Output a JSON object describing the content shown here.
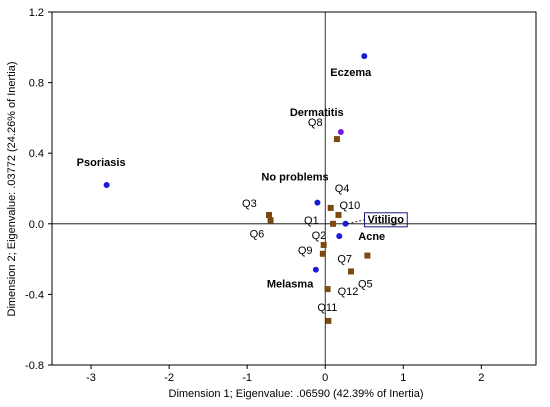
{
  "chart_data": {
    "type": "scatter",
    "xlabel": "Dimension 1; Eigenvalue: .06590 (42.39% of Inertia)",
    "ylabel": "Dimension 2; Eigenvalue: .03772 (24.26% of Inertia)",
    "xlim": [
      -3.5,
      2.7
    ],
    "ylim": [
      -0.8,
      1.2
    ],
    "xticks": [
      -3,
      -2,
      -1,
      0,
      1,
      2
    ],
    "yticks": [
      -0.8,
      -0.4,
      0.0,
      0.4,
      0.8,
      1.2
    ],
    "ytick_labels": [
      "-0.8",
      "-0.4",
      "0.0",
      "0.4",
      "0.8",
      "1.2"
    ],
    "grid": false,
    "colors": {
      "row_points": "#1a1adb",
      "column_points": "#7a4a12",
      "highlighted_point": "#7a1adb",
      "highlight_box": "#1a1a8a"
    },
    "series": [
      {
        "marker": "circle",
        "points": [
          {
            "label": "Eczema",
            "x": 0.5,
            "y": 0.95
          },
          {
            "label": "Dermatitis",
            "x": 0.2,
            "y": 0.52
          },
          {
            "label": "Psoriasis",
            "x": -2.8,
            "y": 0.22
          },
          {
            "label": "No problems",
            "x": -0.1,
            "y": 0.12
          },
          {
            "label": "Vitiligo",
            "x": 0.26,
            "y": 0.0
          },
          {
            "label": "Acne",
            "x": 0.18,
            "y": -0.07
          },
          {
            "label": "Melasma",
            "x": -0.12,
            "y": -0.26
          }
        ]
      },
      {
        "marker": "square",
        "points": [
          {
            "label": "Q8",
            "x": 0.15,
            "y": 0.48
          },
          {
            "label": "Q4",
            "x": 0.07,
            "y": 0.09
          },
          {
            "label": "Q10",
            "x": 0.17,
            "y": 0.05
          },
          {
            "label": "Q3",
            "x": -0.72,
            "y": 0.05
          },
          {
            "label": "Q1",
            "x": 0.1,
            "y": 0.0
          },
          {
            "label": "Q6",
            "x": -0.7,
            "y": 0.02
          },
          {
            "label": "Q2",
            "x": -0.02,
            "y": -0.12
          },
          {
            "label": "Q9",
            "x": -0.03,
            "y": -0.17
          },
          {
            "label": "Q7",
            "x": 0.54,
            "y": -0.18
          },
          {
            "label": "Q5",
            "x": 0.33,
            "y": -0.27
          },
          {
            "label": "Q12",
            "x": 0.03,
            "y": -0.37
          },
          {
            "label": "Q11",
            "x": 0.04,
            "y": -0.55
          }
        ]
      }
    ]
  }
}
